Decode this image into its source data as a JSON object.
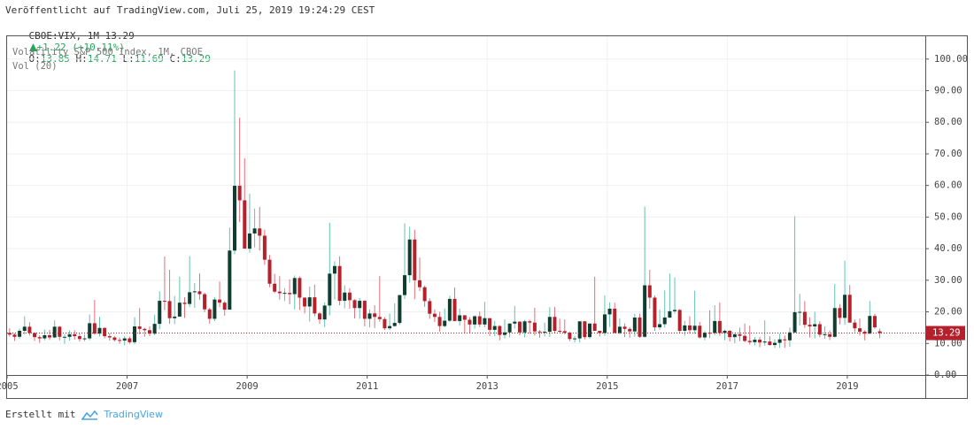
{
  "header": {
    "published": "Veröffentlicht auf TradingView.com, Juli 25, 2019 19:24:29 CEST",
    "symbol": "CBOE:VIX, 1M 13.29",
    "change": "+1.22 (+10.11%)",
    "ohlc": [
      [
        "O:",
        "13.85"
      ],
      [
        "H:",
        "14.71"
      ],
      [
        "L:",
        "11.69"
      ],
      [
        "C:",
        "13.29"
      ]
    ]
  },
  "footer": {
    "made_with": "Erstellt mit",
    "brand": "TradingView"
  },
  "chart_data": {
    "type": "candlestick",
    "legend": [
      "Volatility S&P 500 Index, 1M, CBOE",
      "Vol (20)"
    ],
    "up_color": "#0f3d30",
    "up_wick": "#63c2ad",
    "down_color": "#b5202a",
    "down_wick": "#e0707a",
    "grid": true,
    "xlim": [
      2005,
      2020.3
    ],
    "xticks": [
      2005,
      2007,
      2009,
      2011,
      2013,
      2015,
      2017,
      2019
    ],
    "ylim": [
      0,
      107.5
    ],
    "yticks": [
      {
        "value": 0,
        "label": "0.00"
      },
      {
        "value": 10,
        "label": "10.00"
      },
      {
        "value": 20,
        "label": "20.00"
      },
      {
        "value": 30,
        "label": "30.00"
      },
      {
        "value": 40,
        "label": "40.00"
      },
      {
        "value": 50,
        "label": "50.00"
      },
      {
        "value": 60,
        "label": "60.00"
      },
      {
        "value": 70,
        "label": "70.00"
      },
      {
        "value": 80,
        "label": "80.00"
      },
      {
        "value": 90,
        "label": "90.00"
      },
      {
        "value": 100,
        "label": "100.00"
      }
    ],
    "last_price": 13.29,
    "x": [
      "2005-01",
      "2005-02",
      "2005-03",
      "2005-04",
      "2005-05",
      "2005-06",
      "2005-07",
      "2005-08",
      "2005-09",
      "2005-10",
      "2005-11",
      "2005-12",
      "2006-01",
      "2006-02",
      "2006-03",
      "2006-04",
      "2006-05",
      "2006-06",
      "2006-07",
      "2006-08",
      "2006-09",
      "2006-10",
      "2006-11",
      "2006-12",
      "2007-01",
      "2007-02",
      "2007-03",
      "2007-04",
      "2007-05",
      "2007-06",
      "2007-07",
      "2007-08",
      "2007-09",
      "2007-10",
      "2007-11",
      "2007-12",
      "2008-01",
      "2008-02",
      "2008-03",
      "2008-04",
      "2008-05",
      "2008-06",
      "2008-07",
      "2008-08",
      "2008-09",
      "2008-10",
      "2008-11",
      "2008-12",
      "2009-01",
      "2009-02",
      "2009-03",
      "2009-04",
      "2009-05",
      "2009-06",
      "2009-07",
      "2009-08",
      "2009-09",
      "2009-10",
      "2009-11",
      "2009-12",
      "2010-01",
      "2010-02",
      "2010-03",
      "2010-04",
      "2010-05",
      "2010-06",
      "2010-07",
      "2010-08",
      "2010-09",
      "2010-10",
      "2010-11",
      "2010-12",
      "2011-01",
      "2011-02",
      "2011-03",
      "2011-04",
      "2011-05",
      "2011-06",
      "2011-07",
      "2011-08",
      "2011-09",
      "2011-10",
      "2011-11",
      "2011-12",
      "2012-01",
      "2012-02",
      "2012-03",
      "2012-04",
      "2012-05",
      "2012-06",
      "2012-07",
      "2012-08",
      "2012-09",
      "2012-10",
      "2012-11",
      "2012-12",
      "2013-01",
      "2013-02",
      "2013-03",
      "2013-04",
      "2013-05",
      "2013-06",
      "2013-07",
      "2013-08",
      "2013-09",
      "2013-10",
      "2013-11",
      "2013-12",
      "2014-01",
      "2014-02",
      "2014-03",
      "2014-04",
      "2014-05",
      "2014-06",
      "2014-07",
      "2014-08",
      "2014-09",
      "2014-10",
      "2014-11",
      "2014-12",
      "2015-01",
      "2015-02",
      "2015-03",
      "2015-04",
      "2015-05",
      "2015-06",
      "2015-07",
      "2015-08",
      "2015-09",
      "2015-10",
      "2015-11",
      "2015-12",
      "2016-01",
      "2016-02",
      "2016-03",
      "2016-04",
      "2016-05",
      "2016-06",
      "2016-07",
      "2016-08",
      "2016-09",
      "2016-10",
      "2016-11",
      "2016-12",
      "2017-01",
      "2017-02",
      "2017-03",
      "2017-04",
      "2017-05",
      "2017-06",
      "2017-07",
      "2017-08",
      "2017-09",
      "2017-10",
      "2017-11",
      "2017-12",
      "2018-01",
      "2018-02",
      "2018-03",
      "2018-04",
      "2018-05",
      "2018-06",
      "2018-07",
      "2018-08",
      "2018-09",
      "2018-10",
      "2018-11",
      "2018-12",
      "2019-01",
      "2019-02",
      "2019-03",
      "2019-04",
      "2019-05",
      "2019-06",
      "2019-07"
    ],
    "ohlc": [
      [
        13.3,
        14.8,
        12.2,
        12.8
      ],
      [
        12.8,
        13.2,
        10.8,
        12.1
      ],
      [
        12.1,
        14.7,
        11.5,
        14.0
      ],
      [
        14.0,
        18.6,
        12.8,
        15.3
      ],
      [
        15.3,
        16.7,
        12.5,
        13.3
      ],
      [
        13.3,
        13.5,
        10.8,
        12.0
      ],
      [
        12.0,
        12.6,
        10.2,
        11.6
      ],
      [
        11.6,
        14.4,
        11.0,
        12.6
      ],
      [
        12.6,
        14.3,
        11.1,
        11.9
      ],
      [
        11.9,
        17.3,
        11.7,
        15.3
      ],
      [
        15.3,
        15.5,
        11.0,
        12.1
      ],
      [
        12.1,
        12.9,
        9.9,
        12.1
      ],
      [
        12.1,
        14.1,
        10.9,
        12.9
      ],
      [
        12.9,
        14.2,
        11.2,
        12.3
      ],
      [
        12.3,
        13.1,
        10.6,
        11.4
      ],
      [
        11.4,
        12.9,
        10.7,
        11.6
      ],
      [
        11.6,
        19.2,
        11.0,
        16.4
      ],
      [
        16.4,
        23.8,
        12.8,
        13.1
      ],
      [
        13.1,
        18.4,
        12.2,
        14.9
      ],
      [
        14.9,
        15.1,
        11.6,
        12.3
      ],
      [
        12.3,
        13.2,
        10.9,
        11.9
      ],
      [
        11.9,
        12.3,
        10.6,
        11.1
      ],
      [
        11.1,
        11.9,
        9.9,
        10.9
      ],
      [
        10.9,
        12.3,
        9.4,
        11.6
      ],
      [
        11.6,
        12.2,
        9.9,
        10.4
      ],
      [
        10.4,
        18.3,
        9.7,
        15.4
      ],
      [
        15.4,
        21.2,
        12.9,
        14.6
      ],
      [
        14.6,
        15.0,
        12.1,
        14.2
      ],
      [
        14.2,
        15.4,
        12.3,
        13.1
      ],
      [
        13.1,
        19.1,
        12.6,
        16.2
      ],
      [
        16.2,
        26.5,
        14.5,
        23.5
      ],
      [
        23.5,
        37.5,
        20.5,
        23.4
      ],
      [
        23.4,
        33.3,
        16.2,
        18.0
      ],
      [
        18.0,
        25.0,
        16.1,
        18.5
      ],
      [
        18.5,
        31.1,
        18.5,
        22.9
      ],
      [
        22.9,
        24.6,
        18.1,
        22.5
      ],
      [
        22.5,
        37.6,
        21.5,
        26.2
      ],
      [
        26.2,
        29.1,
        21.3,
        26.5
      ],
      [
        26.5,
        32.2,
        23.8,
        25.6
      ],
      [
        25.6,
        26.1,
        19.9,
        20.8
      ],
      [
        20.8,
        21.3,
        16.3,
        17.8
      ],
      [
        17.8,
        24.7,
        17.1,
        23.9
      ],
      [
        23.9,
        29.6,
        21.5,
        22.9
      ],
      [
        22.9,
        23.4,
        18.8,
        20.7
      ],
      [
        20.7,
        46.7,
        20.7,
        39.4
      ],
      [
        39.4,
        96.4,
        38.2,
        59.9
      ],
      [
        59.9,
        81.5,
        48.4,
        55.3
      ],
      [
        55.3,
        68.6,
        40.0,
        40.0
      ],
      [
        40.0,
        57.4,
        38.7,
        44.8
      ],
      [
        44.8,
        52.7,
        40.4,
        46.4
      ],
      [
        46.4,
        53.2,
        39.4,
        44.1
      ],
      [
        44.1,
        46.0,
        34.9,
        36.5
      ],
      [
        36.5,
        38.0,
        27.8,
        28.9
      ],
      [
        28.9,
        32.0,
        25.9,
        26.4
      ],
      [
        26.4,
        31.3,
        23.9,
        25.9
      ],
      [
        25.9,
        27.5,
        23.4,
        26.0
      ],
      [
        26.0,
        30.3,
        22.4,
        25.6
      ],
      [
        25.6,
        31.5,
        20.8,
        30.7
      ],
      [
        30.7,
        31.2,
        20.6,
        24.5
      ],
      [
        24.5,
        24.6,
        19.5,
        21.7
      ],
      [
        21.7,
        28.0,
        16.9,
        24.6
      ],
      [
        24.6,
        28.6,
        18.6,
        19.5
      ],
      [
        19.5,
        19.9,
        16.2,
        17.6
      ],
      [
        17.6,
        23.0,
        15.2,
        22.0
      ],
      [
        22.0,
        48.2,
        18.9,
        32.1
      ],
      [
        32.1,
        36.0,
        23.9,
        34.5
      ],
      [
        34.5,
        37.6,
        22.1,
        23.5
      ],
      [
        23.5,
        28.4,
        21.1,
        26.1
      ],
      [
        26.1,
        27.5,
        21.0,
        23.7
      ],
      [
        23.7,
        24.0,
        17.9,
        21.2
      ],
      [
        21.2,
        24.4,
        17.8,
        23.5
      ],
      [
        23.5,
        23.7,
        15.4,
        17.8
      ],
      [
        17.8,
        20.8,
        15.1,
        19.5
      ],
      [
        19.5,
        22.1,
        14.9,
        18.4
      ],
      [
        18.4,
        31.3,
        16.9,
        17.7
      ],
      [
        17.7,
        18.3,
        14.3,
        14.8
      ],
      [
        14.8,
        19.5,
        14.3,
        15.5
      ],
      [
        15.5,
        22.7,
        15.3,
        16.5
      ],
      [
        16.5,
        25.4,
        15.9,
        25.3
      ],
      [
        25.3,
        48.0,
        24.1,
        31.6
      ],
      [
        31.6,
        46.9,
        29.3,
        42.9
      ],
      [
        42.9,
        46.0,
        24.0,
        30.0
      ],
      [
        30.0,
        37.2,
        26.6,
        27.8
      ],
      [
        27.8,
        28.3,
        21.6,
        23.4
      ],
      [
        23.4,
        24.3,
        17.8,
        19.4
      ],
      [
        19.4,
        20.8,
        16.8,
        18.4
      ],
      [
        18.4,
        20.0,
        13.7,
        15.5
      ],
      [
        15.5,
        21.1,
        15.1,
        17.2
      ],
      [
        17.2,
        25.1,
        16.8,
        24.1
      ],
      [
        24.1,
        27.7,
        17.0,
        17.1
      ],
      [
        17.1,
        21.0,
        15.6,
        18.9
      ],
      [
        18.9,
        19.0,
        13.3,
        17.5
      ],
      [
        17.5,
        18.3,
        13.3,
        16.0
      ],
      [
        16.0,
        19.0,
        14.7,
        18.6
      ],
      [
        18.6,
        20.1,
        15.2,
        16.0
      ],
      [
        16.0,
        23.2,
        15.1,
        18.0
      ],
      [
        18.0,
        18.0,
        12.3,
        14.3
      ],
      [
        14.3,
        17.1,
        12.3,
        15.5
      ],
      [
        15.5,
        15.8,
        11.0,
        12.7
      ],
      [
        12.7,
        17.6,
        11.6,
        13.5
      ],
      [
        13.5,
        16.3,
        11.9,
        16.3
      ],
      [
        16.3,
        21.9,
        14.7,
        16.9
      ],
      [
        16.9,
        17.0,
        12.6,
        13.5
      ],
      [
        13.5,
        17.5,
        11.9,
        17.0
      ],
      [
        17.0,
        17.5,
        13.1,
        16.6
      ],
      [
        16.6,
        21.3,
        12.5,
        13.8
      ],
      [
        13.8,
        14.2,
        11.8,
        13.7
      ],
      [
        13.7,
        16.6,
        12.2,
        13.7
      ],
      [
        13.7,
        21.5,
        12.1,
        18.4
      ],
      [
        18.4,
        21.5,
        13.4,
        14.0
      ],
      [
        14.0,
        17.8,
        13.4,
        13.9
      ],
      [
        13.9,
        17.6,
        12.9,
        13.4
      ],
      [
        13.4,
        13.7,
        10.7,
        11.4
      ],
      [
        11.4,
        12.4,
        10.3,
        11.6
      ],
      [
        11.6,
        17.0,
        10.3,
        17.0
      ],
      [
        17.0,
        17.1,
        11.3,
        12.0
      ],
      [
        12.0,
        16.3,
        11.5,
        16.3
      ],
      [
        16.3,
        31.1,
        13.9,
        14.0
      ],
      [
        14.0,
        14.0,
        12.2,
        13.3
      ],
      [
        13.3,
        25.2,
        12.4,
        19.2
      ],
      [
        19.2,
        23.0,
        15.2,
        21.0
      ],
      [
        21.0,
        22.9,
        13.3,
        13.3
      ],
      [
        13.3,
        17.9,
        12.9,
        15.3
      ],
      [
        15.3,
        16.3,
        12.0,
        14.6
      ],
      [
        14.6,
        15.2,
        11.8,
        13.8
      ],
      [
        13.8,
        19.4,
        12.1,
        18.2
      ],
      [
        18.2,
        19.4,
        11.8,
        12.1
      ],
      [
        12.1,
        53.3,
        11.8,
        28.4
      ],
      [
        28.4,
        33.3,
        21.0,
        24.5
      ],
      [
        24.5,
        25.2,
        14.0,
        15.1
      ],
      [
        15.1,
        20.7,
        14.3,
        16.1
      ],
      [
        16.1,
        26.8,
        15.0,
        18.2
      ],
      [
        18.2,
        32.1,
        18.0,
        20.2
      ],
      [
        20.2,
        30.9,
        19.4,
        20.6
      ],
      [
        20.6,
        20.9,
        13.1,
        14.0
      ],
      [
        14.0,
        17.1,
        12.5,
        15.7
      ],
      [
        15.7,
        18.6,
        13.1,
        14.2
      ],
      [
        14.2,
        26.7,
        13.0,
        15.6
      ],
      [
        15.6,
        16.8,
        11.6,
        11.9
      ],
      [
        11.9,
        14.0,
        11.0,
        13.4
      ],
      [
        13.4,
        20.5,
        11.7,
        13.3
      ],
      [
        13.3,
        22.1,
        12.6,
        17.1
      ],
      [
        17.1,
        23.0,
        12.4,
        13.3
      ],
      [
        13.3,
        14.4,
        11.0,
        14.0
      ],
      [
        14.0,
        14.2,
        10.6,
        12.0
      ],
      [
        12.0,
        13.3,
        10.1,
        12.9
      ],
      [
        12.9,
        15.0,
        10.7,
        12.4
      ],
      [
        12.4,
        16.3,
        10.4,
        10.8
      ],
      [
        10.8,
        15.6,
        9.6,
        10.4
      ],
      [
        10.4,
        12.1,
        9.4,
        11.2
      ],
      [
        11.2,
        12.0,
        8.8,
        10.3
      ],
      [
        10.3,
        17.3,
        9.3,
        10.6
      ],
      [
        10.6,
        12.3,
        9.3,
        9.5
      ],
      [
        9.5,
        11.3,
        8.6,
        10.2
      ],
      [
        10.2,
        13.1,
        8.6,
        11.3
      ],
      [
        11.3,
        12.5,
        8.6,
        11.0
      ],
      [
        11.0,
        15.0,
        8.9,
        13.5
      ],
      [
        13.5,
        50.3,
        13.4,
        19.9
      ],
      [
        19.9,
        25.7,
        15.7,
        20.0
      ],
      [
        20.0,
        23.4,
        14.9,
        15.9
      ],
      [
        15.9,
        18.3,
        11.9,
        15.4
      ],
      [
        15.4,
        20.0,
        11.6,
        16.1
      ],
      [
        16.1,
        17.0,
        11.9,
        12.8
      ],
      [
        12.8,
        15.4,
        11.5,
        12.9
      ],
      [
        12.9,
        14.1,
        11.1,
        12.1
      ],
      [
        12.1,
        28.8,
        11.9,
        21.2
      ],
      [
        21.2,
        22.5,
        16.0,
        18.1
      ],
      [
        18.1,
        36.2,
        15.9,
        25.4
      ],
      [
        25.4,
        28.5,
        16.6,
        16.6
      ],
      [
        16.6,
        17.6,
        13.6,
        14.8
      ],
      [
        14.8,
        17.9,
        12.5,
        13.7
      ],
      [
        13.7,
        14.2,
        11.0,
        13.1
      ],
      [
        13.1,
        23.4,
        13.1,
        18.7
      ],
      [
        18.7,
        19.4,
        14.6,
        15.1
      ],
      [
        13.85,
        14.71,
        11.69,
        13.29
      ]
    ]
  }
}
